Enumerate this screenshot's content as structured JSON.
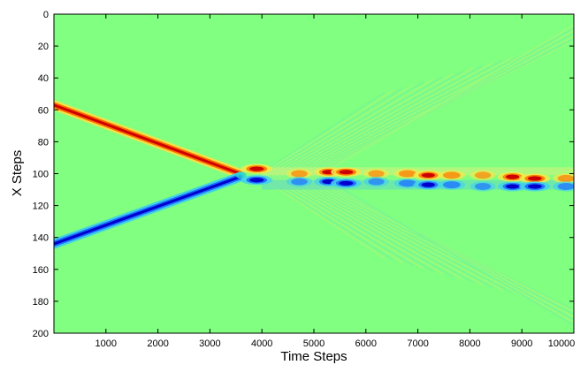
{
  "chart_data": {
    "type": "heatmap",
    "title": "",
    "xlabel": "Time Steps",
    "ylabel": "X Steps",
    "xlim": [
      0,
      10000
    ],
    "ylim": [
      0,
      200
    ],
    "y_axis_direction": "top-to-bottom",
    "x_ticks": [
      1000,
      2000,
      3000,
      4000,
      5000,
      6000,
      7000,
      8000,
      9000,
      10000
    ],
    "y_ticks": [
      0,
      20,
      40,
      60,
      80,
      100,
      120,
      140,
      160,
      180,
      200
    ],
    "colormap": "jet",
    "colors": {
      "background": "#80ff80",
      "positive": "#cc0000",
      "negative": "#0000cc"
    },
    "grid": false,
    "colorbar": false,
    "features": [
      {
        "kind": "positive-band",
        "from": {
          "t": 0,
          "x": 57
        },
        "to": {
          "t": 3580,
          "x": 100
        }
      },
      {
        "kind": "negative-band",
        "from": {
          "t": 0,
          "x": 144
        },
        "to": {
          "t": 3580,
          "x": 102
        }
      },
      {
        "kind": "collision",
        "t": 3600,
        "x": 101
      },
      {
        "kind": "radiation-fan",
        "t_start": 4000,
        "t_end": 10000,
        "x_min": 5,
        "x_max": 195
      }
    ],
    "oscillating_pairs": [
      {
        "t": 3900,
        "x_pos": 97,
        "x_neg": 104,
        "amplitude": 0.95
      },
      {
        "t": 4720,
        "x_pos": 100,
        "x_neg": 105,
        "amplitude": 0.45
      },
      {
        "t": 5280,
        "x_pos": 99,
        "x_neg": 105,
        "amplitude": 0.7
      },
      {
        "t": 5620,
        "x_pos": 99,
        "x_neg": 106,
        "amplitude": 0.9
      },
      {
        "t": 6200,
        "x_pos": 100,
        "x_neg": 105,
        "amplitude": 0.4
      },
      {
        "t": 6800,
        "x_pos": 100,
        "x_neg": 106,
        "amplitude": 0.55
      },
      {
        "t": 7200,
        "x_pos": 101,
        "x_neg": 107,
        "amplitude": 0.8
      },
      {
        "t": 7650,
        "x_pos": 101,
        "x_neg": 107,
        "amplitude": 0.55
      },
      {
        "t": 8250,
        "x_pos": 101,
        "x_neg": 108,
        "amplitude": 0.4
      },
      {
        "t": 8820,
        "x_pos": 102,
        "x_neg": 108,
        "amplitude": 0.8
      },
      {
        "t": 9250,
        "x_pos": 103,
        "x_neg": 108,
        "amplitude": 0.9
      },
      {
        "t": 9850,
        "x_pos": 103,
        "x_neg": 108,
        "amplitude": 0.5
      }
    ]
  }
}
